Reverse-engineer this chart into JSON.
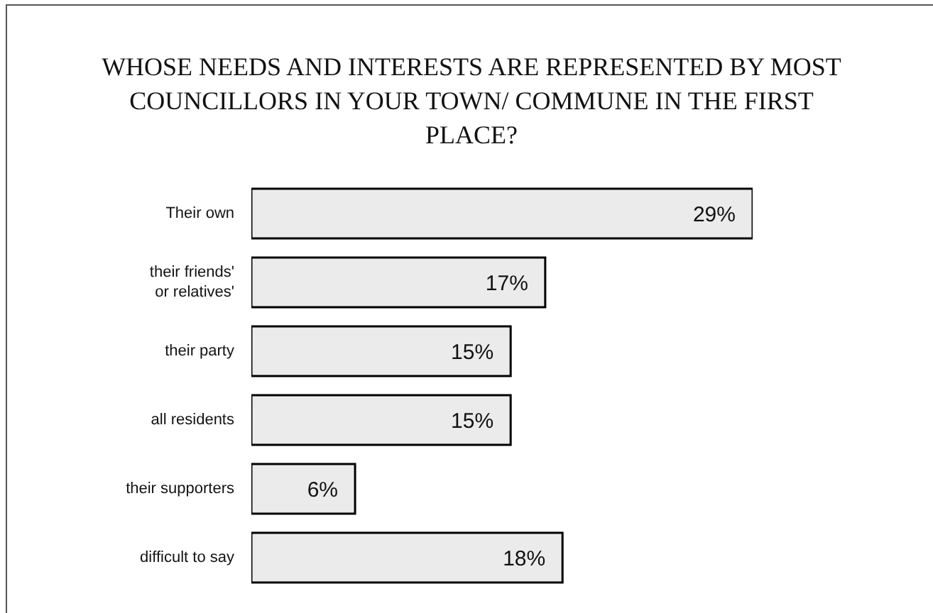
{
  "chart_data": {
    "type": "bar",
    "orientation": "horizontal",
    "title": "WHOSE NEEDS AND INTERESTS ARE REPRESENTED BY MOST COUNCILLORS IN YOUR TOWN/ COMMUNE IN THE FIRST PLACE?",
    "categories": [
      "Their own",
      "their friends' or relatives'",
      "their party",
      "all residents",
      "their supporters",
      "difficult to say"
    ],
    "values": [
      29,
      17,
      15,
      15,
      6,
      18
    ],
    "value_labels": [
      "29%",
      "17%",
      "15%",
      "15%",
      "6%",
      "18%"
    ],
    "color": "#ebebeb"
  }
}
